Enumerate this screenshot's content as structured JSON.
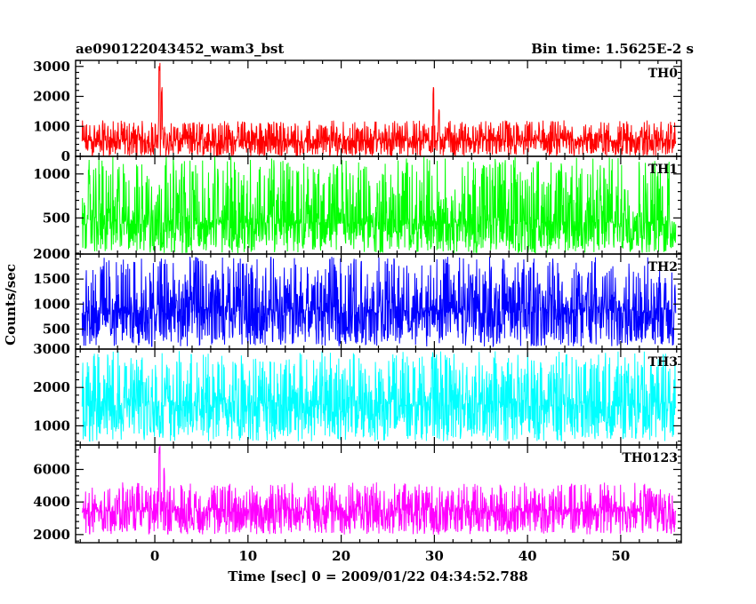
{
  "chart_data": {
    "type": "line",
    "title": "ae090122043452_wam3_bst",
    "subtitle": "Bin time: 1.5625E-2 s",
    "xlabel": "Time [sec] 0 = 2009/01/22 04:34:52.788",
    "ylabel": "Counts/sec",
    "xlim": [
      -8.5,
      56.5
    ],
    "x_ticks": [
      "0",
      "10",
      "20",
      "30",
      "40",
      "50"
    ],
    "panels": [
      {
        "name": "TH0",
        "color": "#ff0000",
        "ylim": [
          0,
          3200
        ],
        "y_ticks": [
          "0",
          "1000",
          "2000",
          "3000"
        ],
        "data_x_range": [
          -7.8,
          55.9
        ],
        "baseline": 500,
        "noise_range": [
          0,
          1200
        ],
        "spikes": [
          {
            "x": 0.5,
            "y": 3200
          },
          {
            "x": 0.75,
            "y": 2400
          },
          {
            "x": 29.9,
            "y": 2400
          },
          {
            "x": 30.5,
            "y": 1600
          }
        ]
      },
      {
        "name": "TH1",
        "color": "#00ff00",
        "ylim": [
          90,
          1200
        ],
        "y_ticks": [
          "500",
          "1000"
        ],
        "data_x_range": [
          -7.8,
          55.9
        ],
        "baseline": 430,
        "noise_range": [
          100,
          1200
        ],
        "spikes": []
      },
      {
        "name": "TH2",
        "color": "#0000ff",
        "ylim": [
          100,
          2000
        ],
        "y_ticks": [
          "500",
          "1000",
          "1500",
          "2000"
        ],
        "data_x_range": [
          -7.8,
          55.9
        ],
        "baseline": 820,
        "noise_range": [
          150,
          1950
        ],
        "spikes": []
      },
      {
        "name": "TH3",
        "color": "#00ffff",
        "ylim": [
          500,
          3000
        ],
        "y_ticks": [
          "1000",
          "2000",
          "3000"
        ],
        "data_x_range": [
          -7.8,
          55.9
        ],
        "baseline": 1500,
        "noise_range": [
          600,
          2950
        ],
        "spikes": []
      },
      {
        "name": "TH0123",
        "color": "#ff00ff",
        "ylim": [
          1500,
          7500
        ],
        "y_ticks": [
          "2000",
          "4000",
          "6000"
        ],
        "data_x_range": [
          -7.8,
          55.9
        ],
        "baseline": 3400,
        "noise_range": [
          2000,
          5200
        ],
        "spikes": [
          {
            "x": 0.5,
            "y": 7500
          },
          {
            "x": 1.0,
            "y": 6200
          }
        ]
      }
    ],
    "grid": false,
    "legend": "none"
  }
}
